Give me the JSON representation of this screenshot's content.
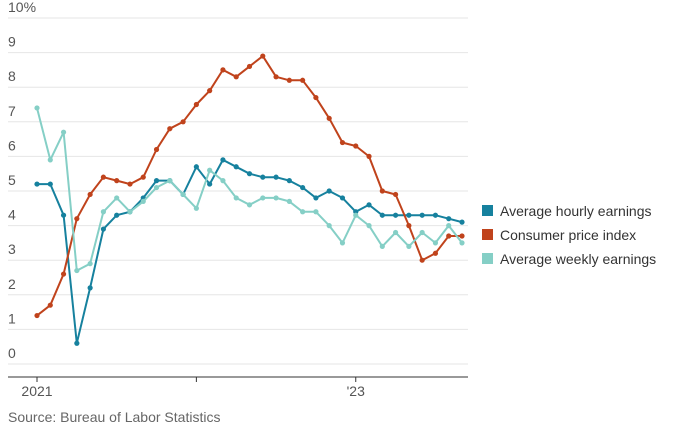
{
  "chart_data": {
    "type": "line",
    "y_unit_suffix": "%",
    "ylim": [
      0,
      10
    ],
    "yticks": [
      0,
      1,
      2,
      3,
      4,
      5,
      6,
      7,
      8,
      9,
      10
    ],
    "ytick_labels": [
      "0",
      "1",
      "2",
      "3",
      "4",
      "5",
      "6",
      "7",
      "8",
      "9",
      "10%"
    ],
    "x_index_range": [
      0,
      32
    ],
    "x_ticks": [
      {
        "index": 0,
        "label": "2021"
      },
      {
        "index": 12,
        "label": ""
      },
      {
        "index": 24,
        "label": "'23"
      }
    ],
    "series": [
      {
        "name": "Average hourly earnings",
        "color": "#16819e",
        "values": [
          5.2,
          5.2,
          4.3,
          0.6,
          2.2,
          3.9,
          4.3,
          4.4,
          4.8,
          5.3,
          5.3,
          4.9,
          5.7,
          5.2,
          5.9,
          5.7,
          5.5,
          5.4,
          5.4,
          5.3,
          5.1,
          4.8,
          5.0,
          4.8,
          4.4,
          4.6,
          4.3,
          4.3,
          4.3,
          4.3,
          4.3,
          4.2,
          4.1
        ]
      },
      {
        "name": "Consumer price index",
        "color": "#c0431c",
        "values": [
          1.4,
          1.7,
          2.6,
          4.2,
          4.9,
          5.4,
          5.3,
          5.2,
          5.4,
          6.2,
          6.8,
          7.0,
          7.5,
          7.9,
          8.5,
          8.3,
          8.6,
          8.9,
          8.3,
          8.2,
          8.2,
          7.7,
          7.1,
          6.4,
          6.3,
          6.0,
          5.0,
          4.9,
          4.0,
          3.0,
          3.2,
          3.7,
          3.7
        ]
      },
      {
        "name": "Average weekly earnings",
        "color": "#85cfc6",
        "values": [
          7.4,
          5.9,
          6.7,
          2.7,
          2.9,
          4.4,
          4.8,
          4.4,
          4.7,
          5.1,
          5.3,
          4.9,
          4.5,
          5.6,
          5.3,
          4.8,
          4.6,
          4.8,
          4.8,
          4.7,
          4.4,
          4.4,
          4.0,
          3.5,
          4.3,
          4.0,
          3.4,
          3.8,
          3.4,
          3.8,
          3.5,
          4.0,
          3.5
        ]
      }
    ],
    "legend_position": "right"
  },
  "footer": {
    "source": "Source: Bureau of Labor Statistics"
  }
}
